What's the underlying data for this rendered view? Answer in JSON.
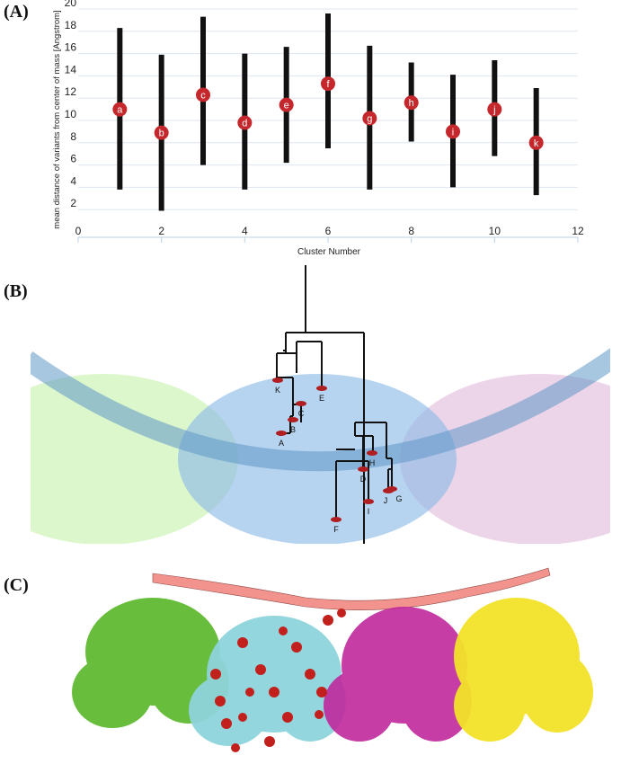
{
  "panels": {
    "a": {
      "label": "(A)"
    },
    "b": {
      "label": "(B)"
    },
    "c": {
      "label": "(C)"
    }
  },
  "chart_data": {
    "type": "scatter",
    "title": "",
    "xlabel": "Cluster Number",
    "ylabel": "mean distance of variants from center of mass [Angstrom]",
    "xlim": [
      0,
      12
    ],
    "ylim": [
      0,
      20
    ],
    "x_ticks": [
      0,
      2,
      4,
      6,
      8,
      10,
      12
    ],
    "y_ticks": [
      2,
      4,
      6,
      8,
      10,
      12,
      14,
      16,
      18,
      20
    ],
    "grid": "horizontal",
    "points": [
      {
        "x": 1,
        "mean": 11.0,
        "low": 3.8,
        "high": 18.3,
        "label": "a"
      },
      {
        "x": 2,
        "mean": 8.9,
        "low": 1.9,
        "high": 15.9,
        "label": "b"
      },
      {
        "x": 3,
        "mean": 12.3,
        "low": 6.0,
        "high": 19.3,
        "label": "c"
      },
      {
        "x": 4,
        "mean": 9.8,
        "low": 3.8,
        "high": 16.0,
        "label": "d"
      },
      {
        "x": 5,
        "mean": 11.4,
        "low": 6.2,
        "high": 16.6,
        "label": "e"
      },
      {
        "x": 6,
        "mean": 13.3,
        "low": 7.5,
        "high": 19.6,
        "label": "f"
      },
      {
        "x": 7,
        "mean": 10.2,
        "low": 3.8,
        "high": 16.7,
        "label": "g"
      },
      {
        "x": 8,
        "mean": 11.6,
        "low": 8.1,
        "high": 15.2,
        "label": "h"
      },
      {
        "x": 9,
        "mean": 9.0,
        "low": 4.0,
        "high": 14.1,
        "label": "i"
      },
      {
        "x": 10,
        "mean": 11.0,
        "low": 6.8,
        "high": 15.4,
        "label": "j"
      },
      {
        "x": 11,
        "mean": 8.0,
        "low": 3.3,
        "high": 12.9,
        "label": "k"
      }
    ],
    "colors": {
      "bar": "#111111",
      "marker": "#c4282c",
      "marker_text": "#ffffff"
    }
  },
  "dendrogram": {
    "leaves": [
      "K",
      "E",
      "C",
      "B",
      "A",
      "H",
      "D",
      "J",
      "G",
      "I",
      "F"
    ],
    "colors": {
      "green": "#c9f2b0",
      "blue": "#8fbce8",
      "pink": "#e6c3df",
      "leaf": "#b01e22"
    }
  },
  "structure": {
    "colors": {
      "green": "#58b827",
      "cyan": "#8fd4dc",
      "magenta": "#c0299c",
      "yellow": "#f3e32a",
      "helix": "#f2938e",
      "sphere": "#c2201d"
    }
  }
}
